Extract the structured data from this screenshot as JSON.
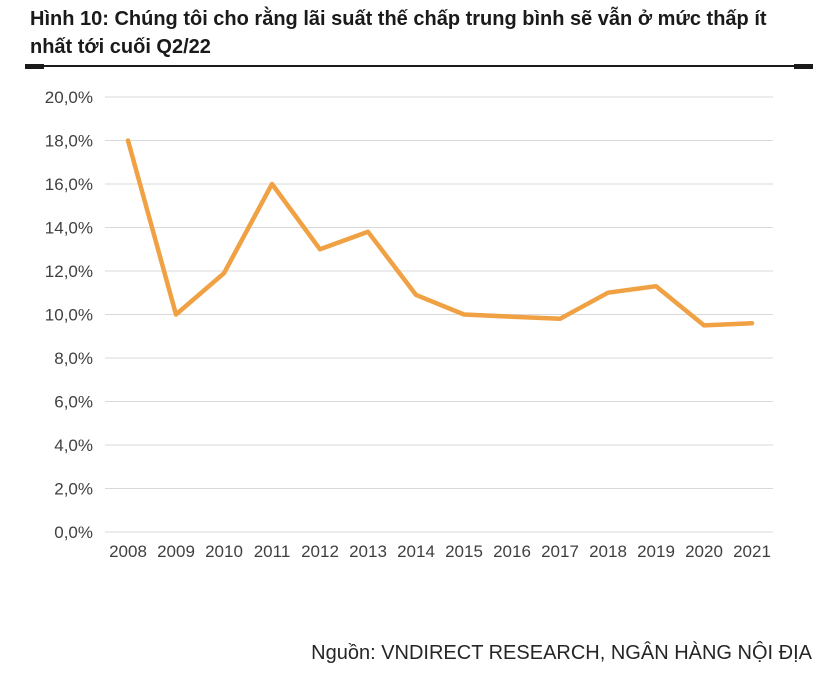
{
  "page": {
    "title": "Hình 10: Chúng tôi cho rằng lãi suất thế chấp trung bình sẽ vẫn ở mức thấp ít nhất tới cuối Q2/22",
    "source": "Nguồn: VNDIRECT RESEARCH, NGÂN HÀNG NỘI ĐỊA"
  },
  "colors": {
    "line": "#F0A143",
    "grid": "#D9D9D9",
    "tick_text": "#404040",
    "title_text": "#1A1A1A",
    "rule": "#1A1A1A"
  },
  "chart_data": {
    "type": "line",
    "title": "",
    "xlabel": "",
    "ylabel": "",
    "categories": [
      "2008",
      "2009",
      "2010",
      "2011",
      "2012",
      "2013",
      "2014",
      "2015",
      "2016",
      "2017",
      "2018",
      "2019",
      "2020",
      "2021"
    ],
    "values": [
      18.0,
      10.0,
      11.9,
      16.0,
      13.0,
      13.8,
      10.9,
      10.0,
      9.9,
      9.8,
      11.0,
      11.3,
      9.5,
      9.6
    ],
    "unit": "%",
    "ylim": [
      0,
      20
    ],
    "y_tick_step": 2,
    "y_ticks": [
      {
        "value": 0,
        "label": "0,0%"
      },
      {
        "value": 2,
        "label": "2,0%"
      },
      {
        "value": 4,
        "label": "4,0%"
      },
      {
        "value": 6,
        "label": "6,0%"
      },
      {
        "value": 8,
        "label": "8,0%"
      },
      {
        "value": 10,
        "label": "10,0%"
      },
      {
        "value": 12,
        "label": "12,0%"
      },
      {
        "value": 14,
        "label": "14,0%"
      },
      {
        "value": 16,
        "label": "16,0%"
      },
      {
        "value": 18,
        "label": "18,0%"
      },
      {
        "value": 20,
        "label": "20,0%"
      }
    ],
    "grid": true,
    "legend": "none",
    "line_color": "#F0A143"
  }
}
